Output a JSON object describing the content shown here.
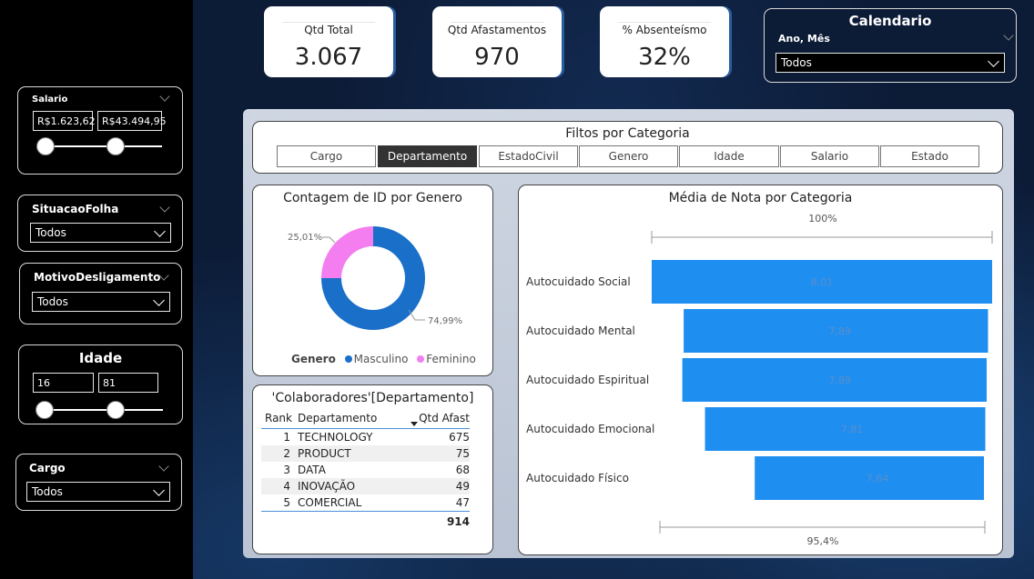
{
  "sidebar": {
    "salario": {
      "title": "Salario",
      "min": "R$1.623,62",
      "max": "R$43.494,95"
    },
    "situacao_folha": {
      "title": "SituacaoFolha",
      "value": "Todos"
    },
    "motivo_desligamento": {
      "title": "MotivoDesligamento",
      "value": "Todos"
    },
    "idade": {
      "title": "Idade",
      "min": "16",
      "max": "81"
    },
    "cargo": {
      "title": "Cargo",
      "value": "Todos"
    }
  },
  "kpis": [
    {
      "label": "Qtd Total",
      "value": "3.067"
    },
    {
      "label": "Qtd Afastamentos",
      "value": "970"
    },
    {
      "label": "% Absenteísmo",
      "value": "32%"
    }
  ],
  "calendar": {
    "title": "Calendario",
    "field": "Ano, Mês",
    "value": "Todos"
  },
  "filters": {
    "title": "Filtos por Categoria",
    "tabs": [
      "Cargo",
      "Departamento",
      "EstadoCivil",
      "Genero",
      "Idade",
      "Salario",
      "Estado"
    ],
    "active": "Departamento"
  },
  "donut": {
    "title": "Contagem de ID por Genero",
    "legend_title": "Genero",
    "label_masculino": "74,99%",
    "label_feminino": "25,01%"
  },
  "ranking": {
    "title": "'Colaboradores'[Departamento]",
    "headers": {
      "rank": "Rank",
      "dept": "Departamento",
      "qtd": "Qtd Afast"
    },
    "rows": [
      {
        "rank": "1",
        "dept": "TECHNOLOGY",
        "qtd": "675"
      },
      {
        "rank": "2",
        "dept": "PRODUCT",
        "qtd": "75"
      },
      {
        "rank": "3",
        "dept": "DATA",
        "qtd": "68"
      },
      {
        "rank": "4",
        "dept": "INOVAÇÃO",
        "qtd": "49"
      },
      {
        "rank": "5",
        "dept": "COMERCIAL",
        "qtd": "47"
      }
    ],
    "total": "914"
  },
  "bars": {
    "title": "Média de Nota por Categoria",
    "top_label": "100%",
    "bottom_label": "95,4%"
  },
  "chart_data": [
    {
      "type": "pie",
      "title": "Contagem de ID por Genero",
      "legend_title": "Genero",
      "legend_position": "bottom",
      "series": [
        {
          "name": "Masculino",
          "value": 74.99,
          "color": "#1a6fc9"
        },
        {
          "name": "Feminino",
          "value": 25.01,
          "color": "#f47ef0"
        }
      ]
    },
    {
      "type": "bar",
      "title": "Média de Nota por Categoria",
      "orientation": "horizontal",
      "color": "#1f8ef1",
      "categories": [
        "Autocuidado Social",
        "Autocuidado Mental",
        "Autocuidado Espiritual",
        "Autocuidado Emocional",
        "Autocuidado Físico"
      ],
      "values": [
        8.01,
        7.89,
        7.89,
        7.81,
        7.64
      ],
      "data_labels": [
        "8,01",
        "7,89",
        "7,89",
        "7,81",
        "7,64"
      ],
      "scale_labels": {
        "top": "100%",
        "bottom": "95,4%"
      }
    }
  ]
}
